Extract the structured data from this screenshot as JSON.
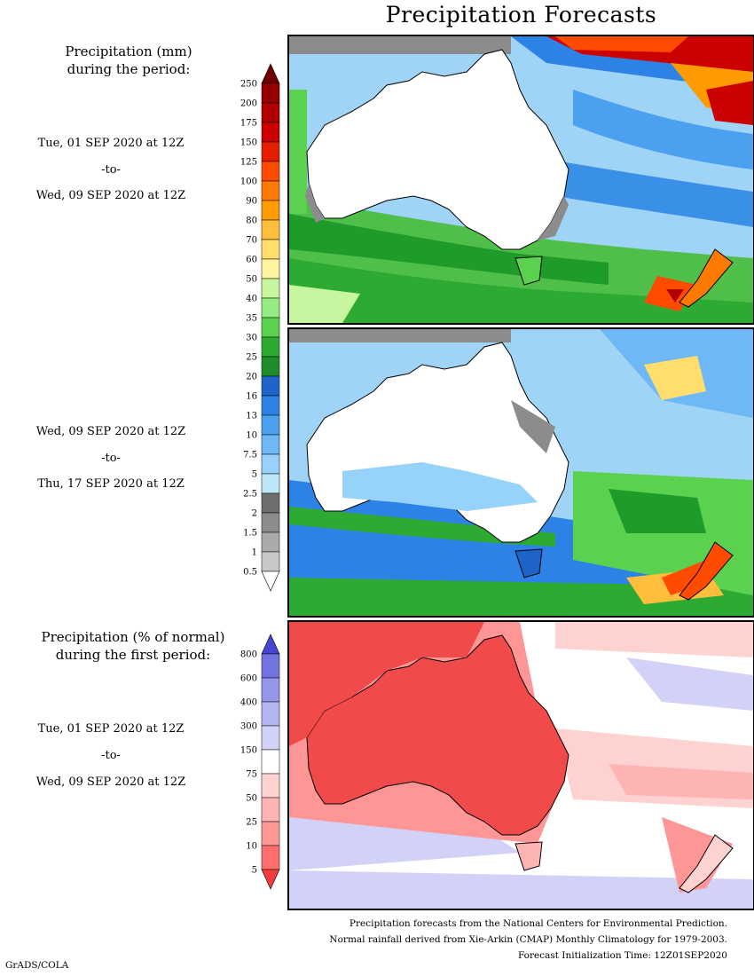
{
  "title": "Precipitation Forecasts",
  "precip_section": {
    "heading_line1": "Precipitation (mm)",
    "heading_line2": "during the period:",
    "period1": {
      "start": "Tue, 01 SEP 2020 at 12Z",
      "to": "-to-",
      "end": "Wed, 09 SEP 2020 at 12Z"
    },
    "period2": {
      "start": "Wed, 09 SEP 2020 at 12Z",
      "to": "-to-",
      "end": "Thu, 17 SEP 2020 at 12Z"
    }
  },
  "precip_colorbar": {
    "levels": [
      "250",
      "200",
      "175",
      "150",
      "125",
      "100",
      "90",
      "80",
      "70",
      "60",
      "50",
      "40",
      "35",
      "30",
      "25",
      "20",
      "16",
      "13",
      "10",
      "7.5",
      "5",
      "2.5",
      "2",
      "1.5",
      "1",
      "0.5"
    ],
    "colors": [
      "#6e0000",
      "#960000",
      "#b00000",
      "#cc0000",
      "#e61e00",
      "#ff4b00",
      "#ff7800",
      "#ff9b00",
      "#ffbe3c",
      "#ffde6e",
      "#fff5a0",
      "#c8f5a0",
      "#96eb82",
      "#5ad250",
      "#2daa32",
      "#1e8c28",
      "#1e64c8",
      "#2d82e6",
      "#4ba0f0",
      "#6eb9f5",
      "#96d2fa",
      "#bee6fa",
      "#6e6e6e",
      "#8c8c8c",
      "#aaaaaa",
      "#c8c8c8",
      "#ffffff"
    ]
  },
  "pct_section": {
    "heading_line1": "Precipitation (% of normal)",
    "heading_line2": "during the first period:",
    "period": {
      "start": "Tue, 01 SEP 2020 at 12Z",
      "to": "-to-",
      "end": "Wed, 09 SEP 2020 at 12Z"
    }
  },
  "pct_colorbar": {
    "levels": [
      "800",
      "600",
      "400",
      "300",
      "150",
      "75",
      "50",
      "25",
      "10",
      "5"
    ],
    "colors": [
      "#4646d2",
      "#7373e1",
      "#9696eb",
      "#b4b4f0",
      "#d2d2f8",
      "#ffffff",
      "#ffd2d2",
      "#ffb4b4",
      "#ff9696",
      "#ff6e6e",
      "#f03c3c"
    ]
  },
  "footer": {
    "line1": "Precipitation forecasts from the National Centers for Environmental Prediction.",
    "line2": "Normal rainfall derived from Xie-Arkin (CMAP) Monthly Climatology for 1979-2003.",
    "line3": "Forecast Initialization Time: 12Z01SEP2020"
  },
  "credit": "GrADS/COLA"
}
